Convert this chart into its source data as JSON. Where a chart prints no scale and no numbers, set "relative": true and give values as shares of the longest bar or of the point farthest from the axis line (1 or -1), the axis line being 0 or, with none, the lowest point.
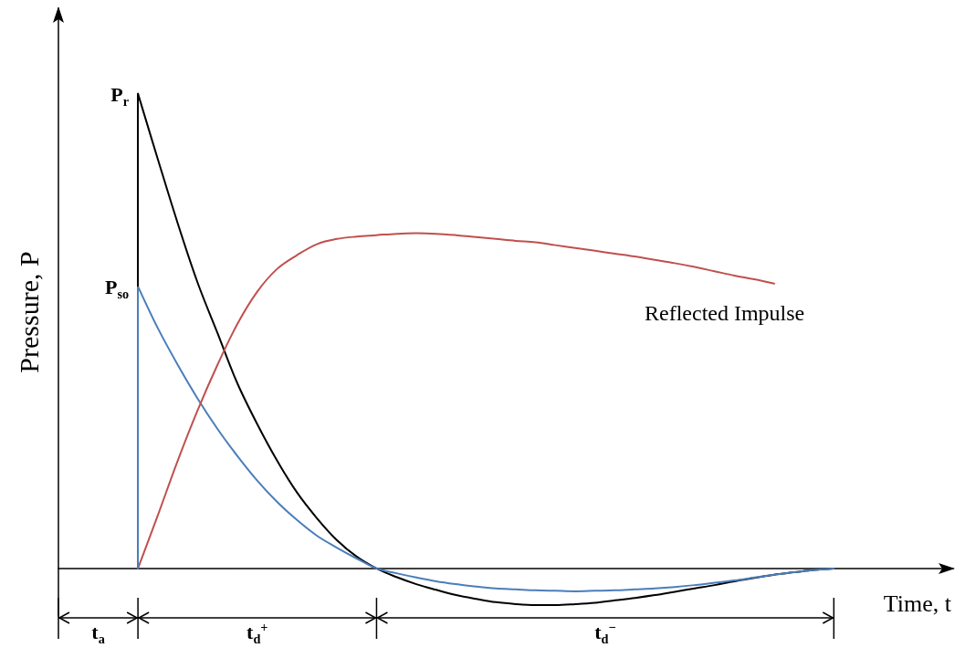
{
  "chart_data": {
    "type": "line",
    "relative": true,
    "xlabel": "Time, t",
    "ylabel": "Pressure, P",
    "categories": [
      null,
      null,
      null,
      null,
      null,
      null,
      null,
      null,
      null,
      null,
      null,
      null,
      null,
      null,
      null,
      null,
      null,
      null,
      null,
      null,
      null,
      null,
      null,
      null,
      null,
      null,
      null,
      null,
      null,
      null,
      null,
      null,
      null,
      null,
      null,
      null,
      null,
      null,
      null,
      null,
      null,
      null,
      null,
      null,
      null,
      null
    ],
    "series": [
      {
        "color": "#000000",
        "values": [
          null,
          null,
          null,
          null,
          1.0,
          0.862,
          0.727,
          0.602,
          0.496,
          0.39,
          0.304,
          0.227,
          0.16,
          0.106,
          0.06,
          0.025,
          0,
          -0.018,
          -0.033,
          -0.045,
          -0.056,
          -0.064,
          -0.071,
          -0.075,
          -0.077,
          -0.077,
          -0.075,
          -0.072,
          -0.067,
          -0.062,
          -0.056,
          -0.049,
          -0.042,
          -0.035,
          -0.027,
          -0.02,
          -0.013,
          -0.008,
          -0.003,
          0,
          null,
          null,
          null,
          null,
          null,
          null
        ]
      },
      {
        "color": "#4a7ebb",
        "values": [
          null,
          null,
          null,
          null,
          0.594,
          0.506,
          0.429,
          0.358,
          0.294,
          0.237,
          0.185,
          0.14,
          0.102,
          0.069,
          0.044,
          0.021,
          0,
          -0.01,
          -0.019,
          -0.027,
          -0.033,
          -0.038,
          -0.042,
          -0.044,
          -0.046,
          -0.047,
          -0.048,
          -0.047,
          -0.046,
          -0.044,
          -0.042,
          -0.039,
          -0.035,
          -0.03,
          -0.025,
          -0.019,
          -0.013,
          -0.008,
          -0.003,
          0,
          null,
          null,
          null,
          null,
          null,
          null
        ]
      },
      {
        "name": "Reflected Impulse",
        "color": "#c0504d",
        "values": [
          null,
          null,
          null,
          null,
          0,
          0.112,
          0.227,
          0.333,
          0.429,
          0.515,
          0.583,
          0.631,
          0.66,
          0.683,
          0.694,
          0.699,
          0.702,
          0.705,
          0.706,
          0.705,
          0.702,
          0.698,
          0.694,
          0.69,
          0.687,
          0.681,
          0.675,
          0.669,
          0.663,
          0.657,
          0.65,
          0.643,
          0.635,
          0.626,
          0.617,
          0.609,
          0.6,
          null,
          null,
          null,
          null,
          null,
          null,
          null,
          null,
          null
        ]
      }
    ],
    "annotations": [
      "P$_{r}$",
      "P$_{so}$",
      "t$_{a}$",
      "t$_{d}$$^{+}$",
      "t$_{d}$$^{−}$"
    ],
    "grid": false,
    "legend": false,
    "marker": "none",
    "line_style": "solid"
  }
}
